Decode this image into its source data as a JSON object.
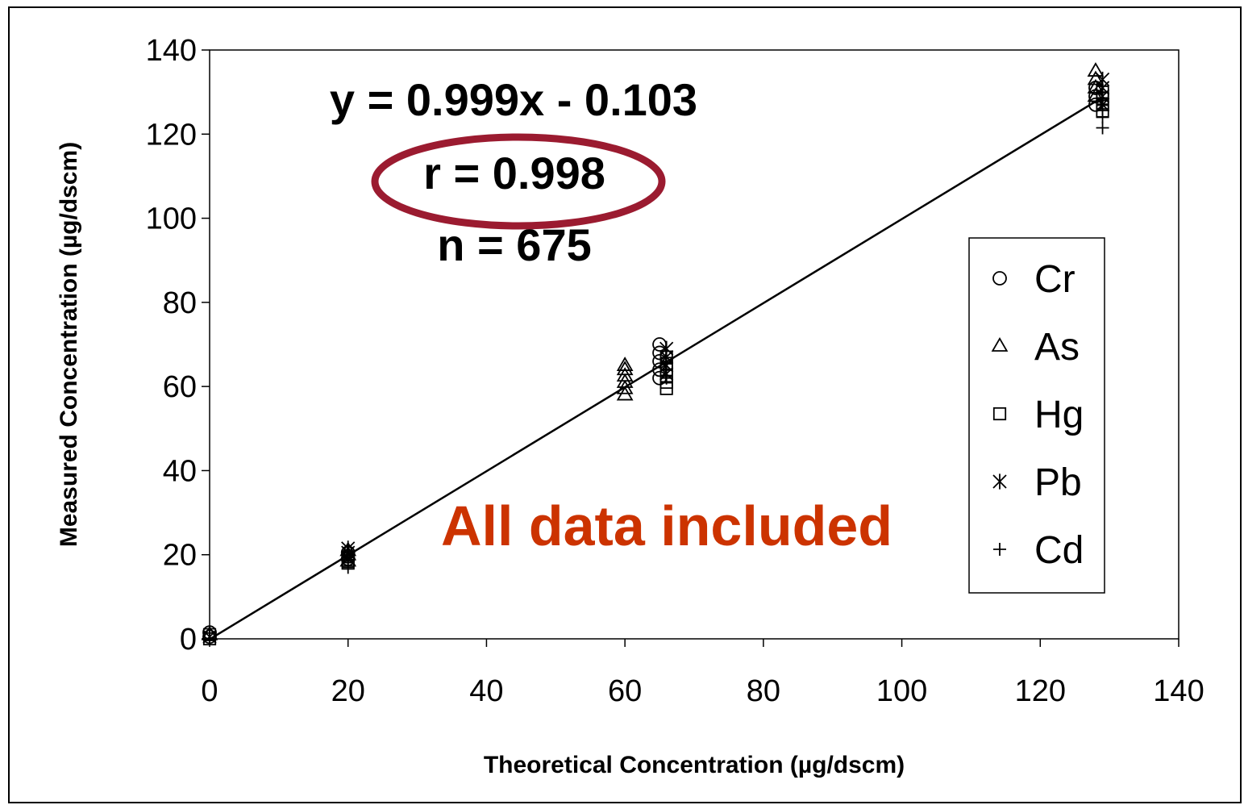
{
  "chart_data": {
    "type": "scatter",
    "xlabel": "Theoretical Concentration (µg/dscm)",
    "ylabel": "Measured Concentration (µg/dscm)",
    "xlim": [
      0,
      140
    ],
    "ylim": [
      0,
      140
    ],
    "x_ticks": [
      "0",
      "20",
      "40",
      "60",
      "80",
      "100",
      "120",
      "140"
    ],
    "y_ticks": [
      "0",
      "20",
      "40",
      "60",
      "80",
      "100",
      "120",
      "140"
    ],
    "grid": false,
    "legend_position": "right",
    "annotations": {
      "equation": "y = 0.999x - 0.103",
      "r": "r = 0.998",
      "n": "n = 675",
      "note": "All data included"
    },
    "trendline": {
      "slope": 0.999,
      "intercept": -0.103,
      "x_range": [
        0,
        128.5
      ]
    },
    "series": [
      {
        "name": "Cr",
        "marker": "circle",
        "points": [
          [
            0,
            0.5
          ],
          [
            0,
            1.5
          ],
          [
            20,
            19
          ],
          [
            20,
            20.5
          ],
          [
            65,
            62
          ],
          [
            65,
            64
          ],
          [
            65,
            66
          ],
          [
            65,
            68
          ],
          [
            65,
            70
          ],
          [
            128,
            127
          ],
          [
            128,
            129
          ],
          [
            128,
            131
          ]
        ]
      },
      {
        "name": "As",
        "marker": "triangle",
        "points": [
          [
            0,
            1
          ],
          [
            20,
            18.5
          ],
          [
            20,
            20
          ],
          [
            20,
            21
          ],
          [
            60,
            58
          ],
          [
            60,
            59.5
          ],
          [
            60,
            61
          ],
          [
            60,
            62.5
          ],
          [
            60,
            64
          ],
          [
            60,
            65
          ],
          [
            128,
            129
          ],
          [
            128,
            131
          ],
          [
            128,
            133
          ],
          [
            128,
            135
          ]
        ]
      },
      {
        "name": "Hg",
        "marker": "square",
        "points": [
          [
            0,
            0
          ],
          [
            0,
            1
          ],
          [
            20,
            18
          ],
          [
            20,
            19.5
          ],
          [
            66,
            59.5
          ],
          [
            66,
            61
          ],
          [
            66,
            62.5
          ],
          [
            66,
            64
          ],
          [
            66,
            65.5
          ],
          [
            66,
            67
          ],
          [
            129,
            125.5
          ],
          [
            129,
            127
          ],
          [
            129,
            128.5
          ],
          [
            129,
            130
          ]
        ]
      },
      {
        "name": "Pb",
        "marker": "asterisk",
        "points": [
          [
            0,
            0.5
          ],
          [
            20,
            19
          ],
          [
            20,
            20.5
          ],
          [
            20,
            21.5
          ],
          [
            66,
            63
          ],
          [
            66,
            65
          ],
          [
            66,
            67
          ],
          [
            66,
            69
          ],
          [
            129,
            127
          ],
          [
            129,
            129
          ],
          [
            129,
            131
          ],
          [
            129,
            133
          ]
        ]
      },
      {
        "name": "Cd",
        "marker": "plus",
        "points": [
          [
            0,
            0
          ],
          [
            20,
            17
          ],
          [
            20,
            18.5
          ],
          [
            20,
            20
          ],
          [
            66,
            62
          ],
          [
            66,
            64
          ],
          [
            66,
            66
          ],
          [
            129,
            121.5
          ],
          [
            129,
            124
          ],
          [
            129,
            126
          ],
          [
            129,
            128
          ],
          [
            129,
            130
          ]
        ]
      }
    ],
    "colors": {
      "annotation_text": "#000000",
      "highlight_text": "#cc3300",
      "ellipse": "#9b1b30",
      "markers": "#000000"
    }
  }
}
